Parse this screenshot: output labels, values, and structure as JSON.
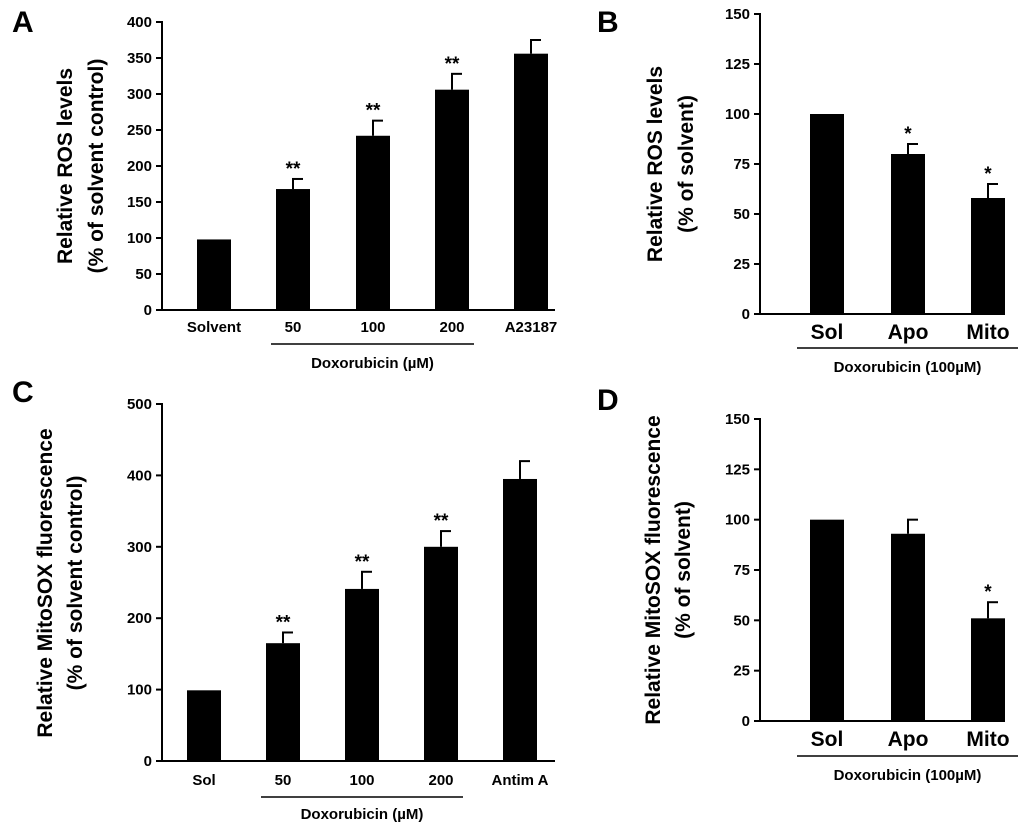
{
  "chart_data": [
    {
      "panel": "A",
      "type": "bar",
      "ylabel_lines": [
        "Relative ROS levels",
        "(% of solvent control)"
      ],
      "ylim": [
        0,
        400
      ],
      "yticks": [
        0,
        50,
        100,
        150,
        200,
        250,
        300,
        350,
        400
      ],
      "categories": [
        "Solvent",
        "50",
        "100",
        "200",
        "A23187"
      ],
      "values": [
        98,
        168,
        242,
        306,
        356
      ],
      "errors": [
        0,
        14,
        21,
        22,
        19
      ],
      "significance": [
        "",
        "**",
        "**",
        "**",
        ""
      ],
      "group_label": "Doxorubicin (µM)",
      "group_span": [
        1,
        3
      ]
    },
    {
      "panel": "B",
      "type": "bar",
      "ylabel_lines": [
        "Relative ROS levels",
        "(% of solvent)"
      ],
      "ylim": [
        0,
        150
      ],
      "yticks": [
        0,
        25,
        50,
        75,
        100,
        125,
        150
      ],
      "categories": [
        "Sol",
        "Apo",
        "Mito"
      ],
      "values": [
        100,
        80,
        58
      ],
      "errors": [
        0,
        5,
        7
      ],
      "significance": [
        "",
        "*",
        "*"
      ],
      "group_label": "Doxorubicin (100µM)",
      "group_span": [
        0,
        2
      ]
    },
    {
      "panel": "C",
      "type": "bar",
      "ylabel_lines": [
        "Relative MitoSOX fluorescence",
        "(% of solvent control)"
      ],
      "ylim": [
        0,
        500
      ],
      "yticks": [
        0,
        100,
        200,
        300,
        400,
        500
      ],
      "categories": [
        "Sol",
        "50",
        "100",
        "200",
        "Antim A"
      ],
      "values": [
        99,
        165,
        241,
        300,
        395
      ],
      "errors": [
        0,
        15,
        24,
        22,
        25
      ],
      "significance": [
        "",
        "**",
        "**",
        "**",
        ""
      ],
      "group_label": "Doxorubicin (µM)",
      "group_span": [
        1,
        3
      ]
    },
    {
      "panel": "D",
      "type": "bar",
      "ylabel_lines": [
        "Relative MitoSOX fluorescence",
        "(% of solvent)"
      ],
      "ylim": [
        0,
        150
      ],
      "yticks": [
        0,
        25,
        50,
        75,
        100,
        125,
        150
      ],
      "categories": [
        "Sol",
        "Apo",
        "Mito"
      ],
      "values": [
        100,
        93,
        51
      ],
      "errors": [
        0,
        7,
        8
      ],
      "significance": [
        "",
        "",
        "*"
      ],
      "group_label": "Doxorubicin (100µM)",
      "group_span": [
        0,
        2
      ]
    }
  ]
}
